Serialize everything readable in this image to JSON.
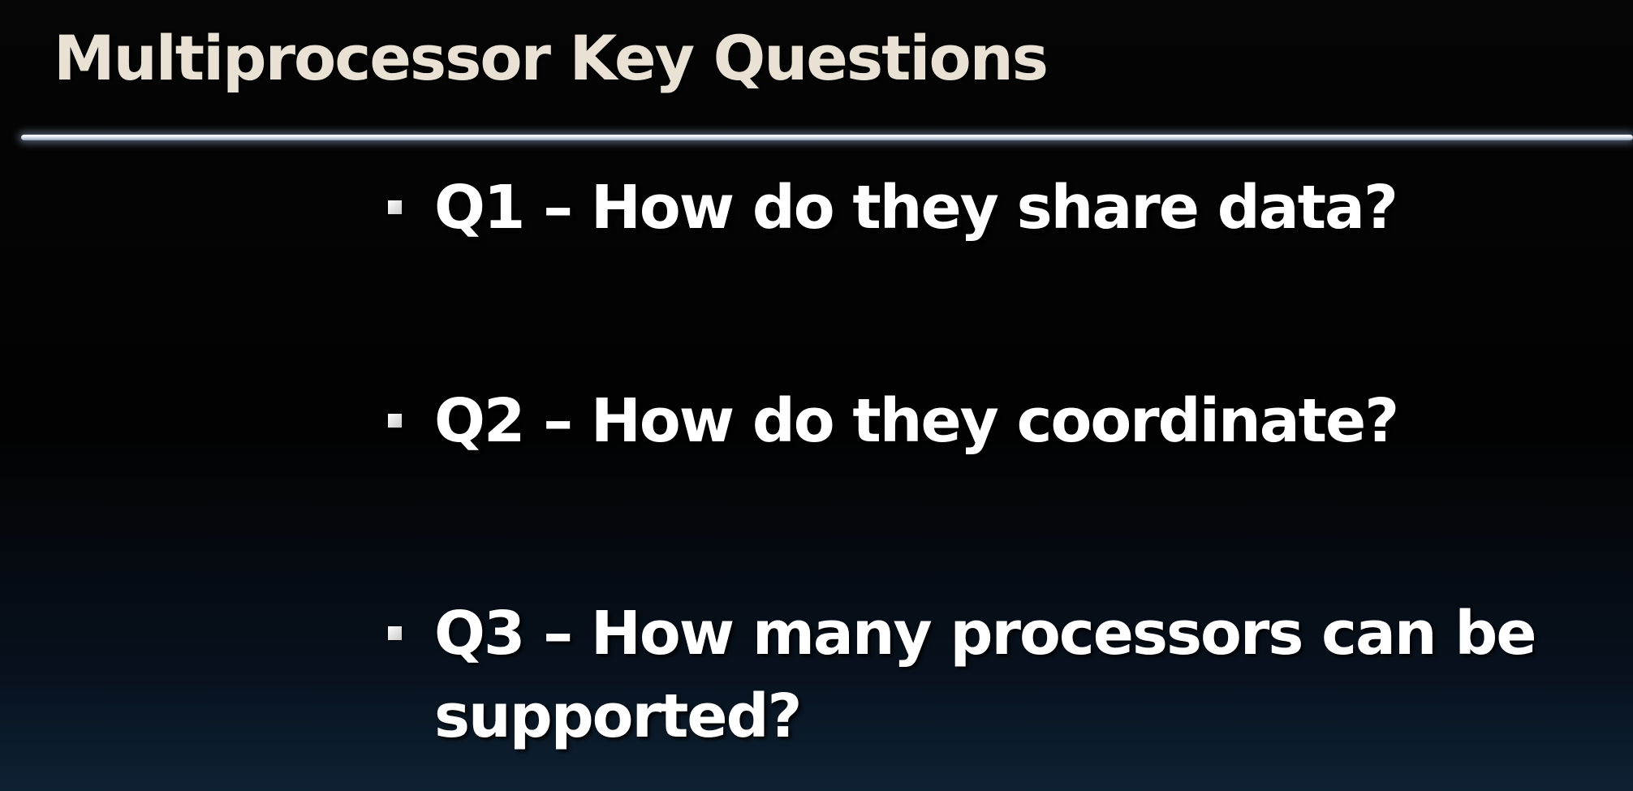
{
  "slide": {
    "title": "Multiprocessor Key Questions",
    "bullets": [
      {
        "text": "Q1 – How do they share data?"
      },
      {
        "text": "Q2 – How do they coordinate?"
      },
      {
        "text": "Q3 – How many processors can be supported?"
      }
    ]
  },
  "colors": {
    "background": "#000000",
    "title_text": "#e9e1d4",
    "bullet_text": "#ffffff",
    "rule": "#dfe6f2"
  }
}
